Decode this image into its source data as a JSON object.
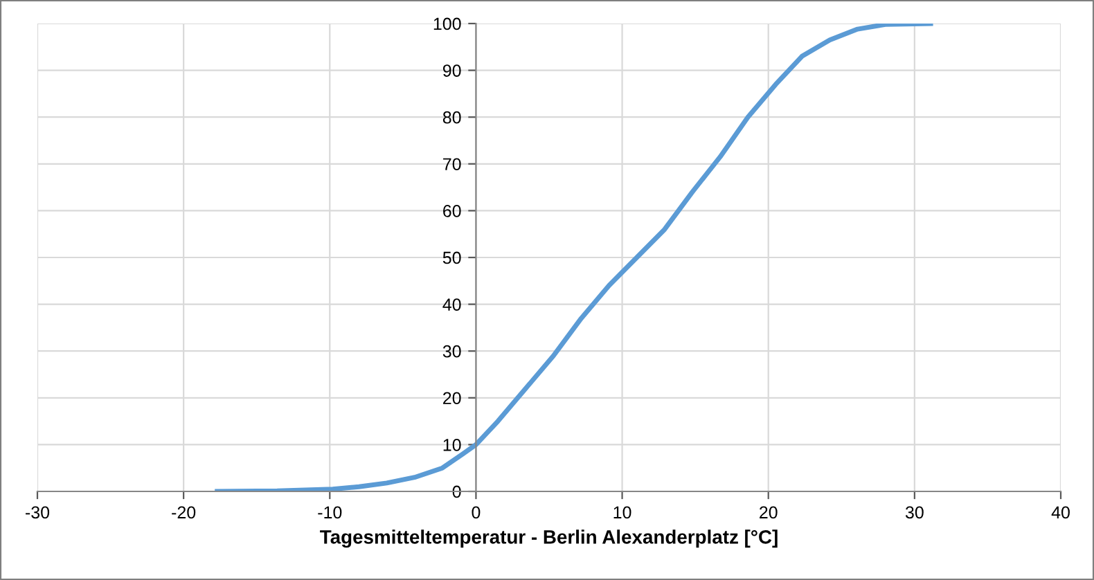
{
  "chart_data": {
    "type": "line",
    "xlabel": "Tagesmitteltemperatur - Berlin Alexanderplatz [°C]",
    "series": [
      {
        "color": "#5b9bd5",
        "x": [
          -17.7,
          -13.6,
          -9.8,
          -8,
          -6.1,
          -4.2,
          -2.3,
          -0.9,
          0,
          1.5,
          3.4,
          5.3,
          7.2,
          9.1,
          11,
          12.9,
          14.8,
          16.7,
          18.6,
          20.5,
          22.3,
          24.2,
          26.1,
          28,
          31.1
        ],
        "values": [
          0,
          0.1,
          0.5,
          1,
          1.8,
          3,
          5,
          8,
          10,
          15,
          22,
          29,
          37,
          44,
          50,
          56,
          64,
          71.5,
          80,
          87,
          93,
          96.5,
          98.8,
          99.8,
          100
        ]
      }
    ],
    "xlim": [
      -30,
      40
    ],
    "xticks": [
      -30,
      -20,
      -10,
      0,
      10,
      20,
      30,
      40
    ],
    "ylim": [
      0,
      100
    ],
    "yticks": [
      0,
      10,
      20,
      30,
      40,
      50,
      60,
      70,
      80,
      90,
      100
    ],
    "grid": true,
    "marker": "none",
    "line_style": "solid",
    "legend": false
  }
}
